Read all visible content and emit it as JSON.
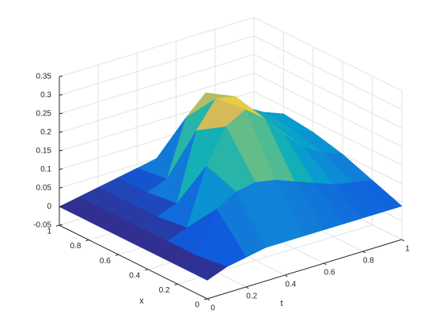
{
  "chart_data": {
    "type": "surface",
    "xlabel": "t",
    "ylabel": "x",
    "t": [
      0,
      0.1,
      0.2,
      0.3,
      0.4,
      0.5,
      0.6,
      0.7,
      0.8,
      0.9,
      1
    ],
    "x": [
      0,
      0.2,
      0.4,
      0.6,
      0.8,
      1
    ],
    "z": [
      [
        0,
        0.02,
        0.03,
        0.04,
        0.04,
        0.04,
        0.04,
        0.04,
        0.04,
        0.04,
        0.04
      ],
      [
        0,
        0.01,
        0.12,
        0.15,
        0.16,
        0.15,
        0.13,
        0.11,
        0.09,
        0.08,
        0.07
      ],
      [
        0,
        0.01,
        0.03,
        0.18,
        0.27,
        0.3,
        0.26,
        0.2,
        0.15,
        0.12,
        0.1
      ],
      [
        0,
        0.01,
        0.02,
        0.04,
        0.22,
        0.29,
        0.28,
        0.22,
        0.17,
        0.14,
        0.12
      ],
      [
        0,
        0.01,
        0.02,
        0.03,
        0.05,
        0.2,
        0.25,
        0.22,
        0.18,
        0.15,
        0.13
      ],
      [
        0,
        0.01,
        0.02,
        0.03,
        0.04,
        0.05,
        0.1,
        0.13,
        0.12,
        0.1,
        0.09
      ]
    ],
    "tlim": [
      0,
      1
    ],
    "tticks": [
      0,
      0.2,
      0.4,
      0.6,
      0.8,
      1
    ],
    "xlim": [
      0,
      1
    ],
    "xticks": [
      0,
      0.2,
      0.4,
      0.6,
      0.8,
      1
    ],
    "zlim": [
      -0.05,
      0.35
    ],
    "zticks": [
      -0.05,
      0,
      0.05,
      0.1,
      0.15,
      0.2,
      0.25,
      0.3,
      0.35
    ],
    "grid": true,
    "colormap": "parula"
  }
}
